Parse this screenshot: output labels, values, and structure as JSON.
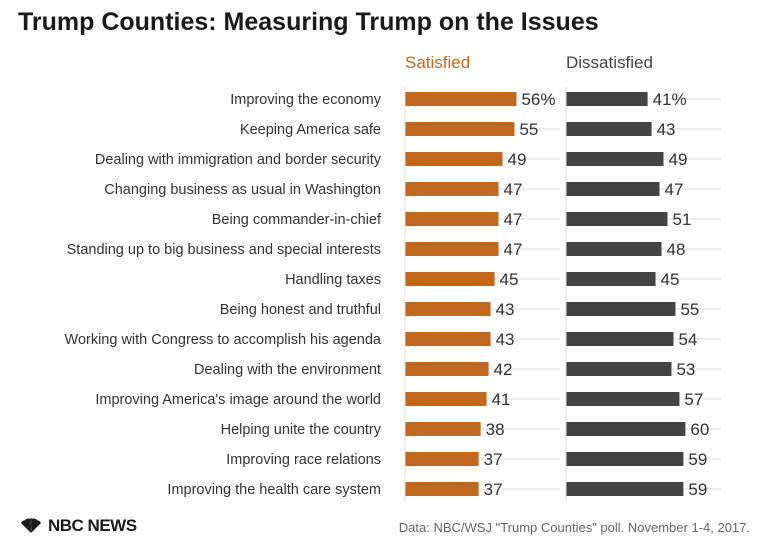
{
  "title": "Trump Counties: Measuring Trump on the Issues",
  "source": "Data: NBC/WSJ \"Trump Counties\" poll. November 1-4, 2017.",
  "logo": {
    "text": "NBC NEWS",
    "icon": "peacock-icon"
  },
  "colors": {
    "satisfied": "#c0691e",
    "dissatisfied": "#444444",
    "grid": "#dddddd"
  },
  "chart_data": {
    "type": "bar",
    "orientation": "horizontal",
    "categories": [
      "Improving the economy",
      "Keeping America safe",
      "Dealing with immigration and border security",
      "Changing business as usual in Washington",
      "Being commander-in-chief",
      "Standing up to big business and special interests",
      "Handling taxes",
      "Being honest and truthful",
      "Working with Congress to accomplish his agenda",
      "Dealing with the environment",
      "Improving America's image around the world",
      "Helping unite the country",
      "Improving race relations",
      "Improving the health care system"
    ],
    "series": [
      {
        "name": "Satisfied",
        "values": [
          56,
          55,
          49,
          47,
          47,
          47,
          45,
          43,
          43,
          42,
          41,
          38,
          37,
          37
        ]
      },
      {
        "name": "Dissatisfied",
        "values": [
          41,
          43,
          49,
          47,
          51,
          48,
          45,
          55,
          54,
          53,
          57,
          60,
          59,
          59
        ]
      }
    ],
    "value_labels": [
      [
        "56%",
        "55",
        "49",
        "47",
        "47",
        "47",
        "45",
        "43",
        "43",
        "42",
        "41",
        "38",
        "37",
        "37"
      ],
      [
        "41%",
        "43",
        "49",
        "47",
        "51",
        "48",
        "45",
        "55",
        "54",
        "53",
        "57",
        "60",
        "59",
        "59"
      ]
    ],
    "legend": "top"
  }
}
